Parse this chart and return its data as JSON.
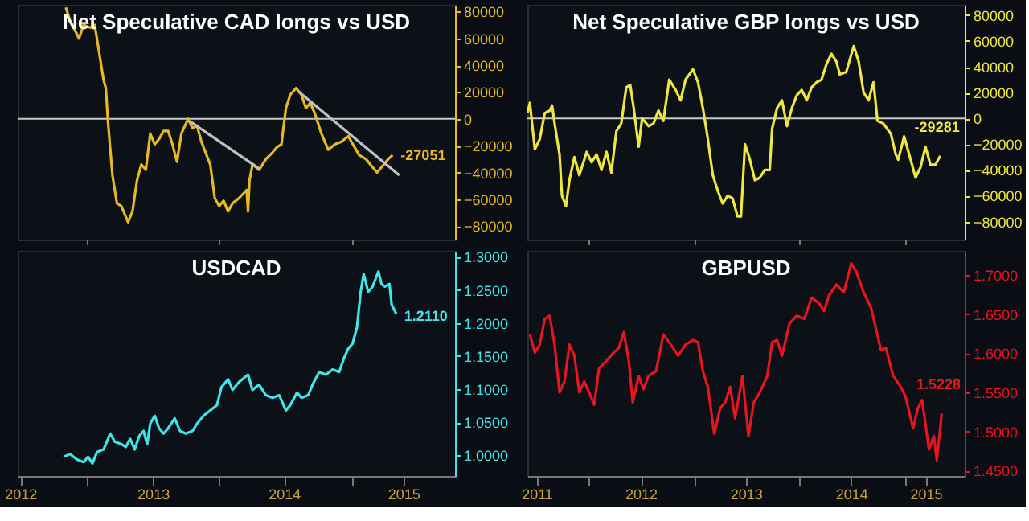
{
  "chart_data": [
    {
      "type": "line",
      "title": "Net Speculative CAD longs vs USD",
      "grid": false,
      "tick_labels": "y",
      "xlim": [
        2012.48,
        2015.78
      ],
      "ylim": [
        -90000,
        85000
      ],
      "xticks": [
        {
          "value": 2013,
          "label": null
        },
        {
          "value": 2014,
          "label": null
        },
        {
          "value": 2015,
          "label": null
        }
      ],
      "yticks": [
        -80000,
        -60000,
        -40000,
        -20000,
        0,
        20000,
        40000,
        60000,
        80000
      ],
      "ref_lines": [
        {
          "axis": "y",
          "value": 0,
          "label": null,
          "color": "#c8c8c8"
        }
      ],
      "annotations": [
        {
          "text": "-27051",
          "x": 2015.309,
          "y": -27051
        }
      ],
      "series": [
        {
          "color": "#e8b820",
          "x": [
            2012.843,
            2012.876,
            2012.943,
            2012.977,
            2013.027,
            2013.061,
            2013.094,
            2013.128,
            2013.145,
            2013.162,
            2013.195,
            2013.229,
            2013.262,
            2013.313,
            2013.346,
            2013.38,
            2013.413,
            2013.447,
            2013.48,
            2013.514,
            2013.547,
            2013.581,
            2013.615,
            2013.648,
            2013.682,
            2013.715,
            2013.766,
            2013.799,
            2013.833,
            2013.866,
            2013.933,
            2013.967,
            2014.0,
            2014.034,
            2014.067,
            2014.101,
            2014.151,
            2014.208,
            2014.218,
            2014.229,
            2014.252,
            2014.302,
            2014.353,
            2014.403,
            2014.437,
            2014.47,
            2014.504,
            2014.537,
            2014.581,
            2014.621,
            2014.655,
            2014.688,
            2014.722,
            2014.772,
            2014.823,
            2014.873,
            2014.923,
            2014.974,
            2015.057,
            2015.108,
            2015.158,
            2015.192,
            2015.225,
            2015.276,
            2015.309
          ],
          "values": [
            83000,
            73000,
            60000,
            70000,
            68000,
            70000,
            50000,
            29000,
            23000,
            -3000,
            -42000,
            -63000,
            -65000,
            -77000,
            -69000,
            -46000,
            -34000,
            -38000,
            -11000,
            -19000,
            -15000,
            -9000,
            -9000,
            -19000,
            -32000,
            -11000,
            0,
            -7000,
            -5000,
            -17000,
            -34000,
            -59000,
            -65000,
            -61000,
            -69000,
            -63000,
            -59000,
            -53000,
            -69000,
            -46000,
            -34000,
            -38000,
            -30000,
            -25000,
            -21000,
            -19000,
            8000,
            18000,
            23000,
            18000,
            8000,
            12000,
            4000,
            -11000,
            -23000,
            -19000,
            -17000,
            -13000,
            -27000,
            -30000,
            -36000,
            -40000,
            -36000,
            -30000,
            -27000
          ]
        },
        {
          "color": "#c0c0c0",
          "x": [
            2013.782,
            2014.302
          ],
          "values": [
            -2000,
            -37000
          ]
        },
        {
          "color": "#c0c0c0",
          "x": [
            2014.604,
            2015.36
          ],
          "values": [
            20000,
            -42000
          ]
        }
      ]
    },
    {
      "type": "line",
      "title": "Net Speculative GBP longs vs USD",
      "grid": false,
      "tick_labels": "y",
      "xlim": [
        2011.412,
        2015.57
      ],
      "ylim": [
        -94000,
        88000
      ],
      "xticks": [
        {
          "value": 2012,
          "label": null
        },
        {
          "value": 2013,
          "label": null
        },
        {
          "value": 2014,
          "label": null
        },
        {
          "value": 2015,
          "label": null
        }
      ],
      "yticks": [
        -80000,
        -60000,
        -40000,
        -20000,
        0,
        20000,
        40000,
        60000,
        80000
      ],
      "ref_lines": [
        {
          "axis": "y",
          "value": 0,
          "label": null,
          "color": "#c8c8c8"
        }
      ],
      "annotations": [
        {
          "text": "-29281",
          "x": 2015.338,
          "y": -29281
        }
      ],
      "series": [
        {
          "color": "#f0e640",
          "x": [
            2011.412,
            2011.436,
            2011.483,
            2011.53,
            2011.577,
            2011.624,
            2011.647,
            2011.671,
            2011.718,
            2011.741,
            2011.779,
            2011.812,
            2011.859,
            2011.906,
            2011.976,
            2012.023,
            2012.07,
            2012.117,
            2012.164,
            2012.211,
            2012.258,
            2012.305,
            2012.352,
            2012.39,
            2012.423,
            2012.47,
            2012.503,
            2012.564,
            2012.611,
            2012.658,
            2012.705,
            2012.761,
            2012.822,
            2012.869,
            2012.916,
            2012.987,
            2013.034,
            2013.081,
            2013.128,
            2013.175,
            2013.222,
            2013.269,
            2013.316,
            2013.363,
            2013.41,
            2013.443,
            2013.481,
            2013.528,
            2013.575,
            2013.622,
            2013.669,
            2013.716,
            2013.739,
            2013.786,
            2013.833,
            2013.88,
            2013.927,
            2013.974,
            2014.021,
            2014.068,
            2014.115,
            2014.162,
            2014.209,
            2014.256,
            2014.303,
            2014.35,
            2014.383,
            2014.444,
            2014.515,
            2014.562,
            2014.609,
            2014.656,
            2014.703,
            2014.741,
            2014.797,
            2014.868,
            2014.915,
            2014.938,
            2014.994,
            2015.056,
            2015.103,
            2015.15,
            2015.197,
            2015.244,
            2015.291,
            2015.338
          ],
          "values": [
            4000,
            12000,
            -24000,
            -16000,
            4000,
            6000,
            10000,
            -4000,
            -28000,
            -60000,
            -68000,
            -48000,
            -30000,
            -44000,
            -26000,
            -34000,
            -28000,
            -40000,
            -26000,
            -42000,
            -10000,
            -4000,
            24000,
            26000,
            8000,
            -22000,
            0,
            -6000,
            -4000,
            6000,
            -2000,
            30000,
            22000,
            14000,
            30000,
            38000,
            28000,
            8000,
            -16000,
            -44000,
            -56000,
            -66000,
            -60000,
            -62000,
            -76000,
            -76000,
            -20000,
            -32000,
            -48000,
            -46000,
            -40000,
            -40000,
            -8000,
            8000,
            14000,
            -6000,
            8000,
            18000,
            22000,
            14000,
            24000,
            28000,
            30000,
            42000,
            50000,
            44000,
            34000,
            36000,
            56000,
            44000,
            20000,
            14000,
            28000,
            -2000,
            -4000,
            -12000,
            -28000,
            -32000,
            -14000,
            -32000,
            -46000,
            -38000,
            -22000,
            -36000,
            -36000,
            -29000
          ]
        }
      ]
    },
    {
      "type": "line",
      "title": "USDCAD",
      "grid": false,
      "xlim": [
        2012.48,
        2015.78
      ],
      "ylim": [
        0.969,
        1.309
      ],
      "xticks": [
        {
          "value": 2012.5,
          "label": "2012"
        },
        {
          "value": 2013,
          "label": null
        },
        {
          "value": 2013.5,
          "label": "2013"
        },
        {
          "value": 2014,
          "label": null
        },
        {
          "value": 2014.49,
          "label": "2014"
        },
        {
          "value": 2015,
          "label": null
        },
        {
          "value": 2015.39,
          "label": "2015"
        }
      ],
      "yticks": [
        {
          "value": 1.0,
          "label": "1.0000"
        },
        {
          "value": 1.05,
          "label": "1.0500"
        },
        {
          "value": 1.1,
          "label": "1.1000"
        },
        {
          "value": 1.15,
          "label": "1.1500"
        },
        {
          "value": 1.2,
          "label": "1.2000"
        },
        {
          "value": 1.25,
          "label": "1.2500"
        },
        {
          "value": 1.3,
          "label": "1.3000"
        }
      ],
      "annotations": [
        {
          "text": "1.2110",
          "x": 2015.336,
          "y": 1.211
        }
      ],
      "series": [
        {
          "color": "#3ee6ea",
          "x": [
            2012.826,
            2012.876,
            2012.927,
            2012.977,
            2013.011,
            2013.044,
            2013.078,
            2013.128,
            2013.178,
            2013.212,
            2013.262,
            2013.296,
            2013.329,
            2013.363,
            2013.396,
            2013.43,
            2013.457,
            2013.48,
            2013.514,
            2013.547,
            2013.581,
            2013.615,
            2013.665,
            2013.705,
            2013.749,
            2013.799,
            2013.833,
            2013.883,
            2013.933,
            2013.984,
            2014.017,
            2014.068,
            2014.101,
            2014.151,
            2014.218,
            2014.252,
            2014.302,
            2014.353,
            2014.403,
            2014.454,
            2014.504,
            2014.537,
            2014.588,
            2014.621,
            2014.672,
            2014.705,
            2014.755,
            2014.806,
            2014.856,
            2014.906,
            2014.94,
            2014.973,
            2015.007,
            2015.04,
            2015.068,
            2015.091,
            2015.125,
            2015.158,
            2015.202,
            2015.225,
            2015.252,
            2015.285,
            2015.302,
            2015.336
          ],
          "values": [
            0.998,
            1.002,
            0.994,
            0.99,
            0.998,
            0.988,
            1.005,
            1.009,
            1.033,
            1.021,
            1.017,
            1.013,
            1.025,
            1.009,
            1.029,
            1.037,
            1.017,
            1.048,
            1.06,
            1.041,
            1.033,
            1.041,
            1.056,
            1.037,
            1.033,
            1.037,
            1.048,
            1.06,
            1.068,
            1.076,
            1.103,
            1.115,
            1.099,
            1.111,
            1.122,
            1.099,
            1.107,
            1.091,
            1.087,
            1.091,
            1.068,
            1.076,
            1.095,
            1.087,
            1.091,
            1.107,
            1.126,
            1.122,
            1.13,
            1.126,
            1.146,
            1.161,
            1.169,
            1.193,
            1.247,
            1.274,
            1.247,
            1.255,
            1.278,
            1.259,
            1.255,
            1.259,
            1.228,
            1.214
          ]
        }
      ]
    },
    {
      "type": "line",
      "title": "GBPUSD",
      "grid": false,
      "xlim": [
        2011.412,
        2015.57
      ],
      "ylim": [
        1.443,
        1.731
      ],
      "xticks": [
        {
          "value": 2011.5,
          "label": "2011"
        },
        {
          "value": 2012,
          "label": null
        },
        {
          "value": 2012.49,
          "label": "2012"
        },
        {
          "value": 2013,
          "label": null
        },
        {
          "value": 2013.49,
          "label": "2013"
        },
        {
          "value": 2014,
          "label": null
        },
        {
          "value": 2014.49,
          "label": "2014"
        },
        {
          "value": 2015,
          "label": null
        },
        {
          "value": 2015.2,
          "label": "2015"
        }
      ],
      "yticks": [
        {
          "value": 1.45,
          "label": "1.4500"
        },
        {
          "value": 1.5,
          "label": "1.5000"
        },
        {
          "value": 1.55,
          "label": "1.5500"
        },
        {
          "value": 1.6,
          "label": "1.6000"
        },
        {
          "value": 1.65,
          "label": "1.6500"
        },
        {
          "value": 1.7,
          "label": "1.7000"
        }
      ],
      "annotations": [
        {
          "text": "1.5228",
          "x": 2015.352,
          "y": 1.5228
        }
      ],
      "series": [
        {
          "color": "#e8141e",
          "x": [
            2011.436,
            2011.483,
            2011.53,
            2011.577,
            2011.624,
            2011.671,
            2011.718,
            2011.765,
            2011.812,
            2011.859,
            2011.906,
            2011.953,
            2012.0,
            2012.047,
            2012.094,
            2012.141,
            2012.188,
            2012.235,
            2012.282,
            2012.329,
            2012.376,
            2012.414,
            2012.47,
            2012.517,
            2012.564,
            2012.635,
            2012.705,
            2012.776,
            2012.846,
            2012.916,
            2012.987,
            2013.034,
            2013.081,
            2013.128,
            2013.189,
            2013.246,
            2013.293,
            2013.34,
            2013.387,
            2013.457,
            2013.514,
            2013.565,
            2013.622,
            2013.693,
            2013.739,
            2013.786,
            2013.833,
            2013.904,
            2013.974,
            2014.045,
            2014.115,
            2014.186,
            2014.233,
            2014.28,
            2014.35,
            2014.421,
            2014.491,
            2014.538,
            2014.609,
            2014.68,
            2014.727,
            2014.774,
            2014.821,
            2014.891,
            2014.962,
            2015.009,
            2015.079,
            2015.126,
            2015.164,
            2015.197,
            2015.23,
            2015.277,
            2015.305,
            2015.352
          ],
          "values": [
            1.624,
            1.601,
            1.611,
            1.644,
            1.648,
            1.611,
            1.55,
            1.564,
            1.611,
            1.597,
            1.55,
            1.564,
            1.55,
            1.534,
            1.581,
            1.587,
            1.594,
            1.601,
            1.607,
            1.627,
            1.591,
            1.537,
            1.571,
            1.554,
            1.571,
            1.577,
            1.624,
            1.611,
            1.597,
            1.611,
            1.617,
            1.614,
            1.577,
            1.557,
            1.497,
            1.53,
            1.537,
            1.557,
            1.517,
            1.571,
            1.494,
            1.537,
            1.55,
            1.571,
            1.614,
            1.617,
            1.597,
            1.638,
            1.648,
            1.644,
            1.671,
            1.664,
            1.654,
            1.674,
            1.688,
            1.678,
            1.715,
            1.705,
            1.678,
            1.658,
            1.631,
            1.604,
            1.607,
            1.571,
            1.557,
            1.544,
            1.504,
            1.53,
            1.54,
            1.51,
            1.477,
            1.494,
            1.463,
            1.523
          ]
        }
      ]
    }
  ]
}
